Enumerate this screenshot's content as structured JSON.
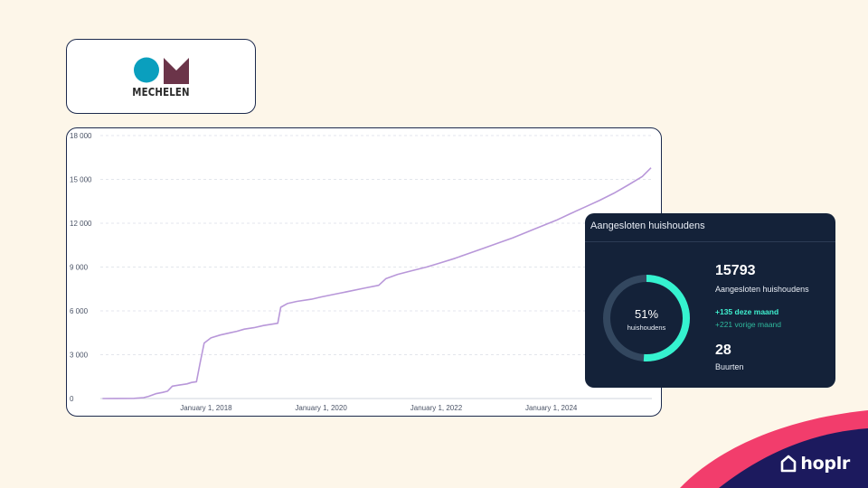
{
  "logo": {
    "text": "MECHELEN",
    "colors": {
      "circle": "#0a9fbe",
      "m": "#6b3449"
    }
  },
  "chart_data": {
    "type": "line",
    "title": "",
    "xlabel": "",
    "ylabel": "",
    "ylim": [
      0,
      18000
    ],
    "y_ticks": [
      0,
      3000,
      6000,
      9000,
      12000,
      15000,
      18000
    ],
    "y_tick_labels": [
      "0",
      "3 000",
      "6 000",
      "9 000",
      "12 000",
      "15 000",
      "18 000"
    ],
    "xlim": [
      "2016-03-01",
      "2025-10-01"
    ],
    "x_ticks": [
      "2018-01-01",
      "2020-01-01",
      "2022-01-01",
      "2024-01-01"
    ],
    "x_tick_labels": [
      "January 1, 2018",
      "January 1, 2020",
      "January 1, 2022",
      "January 1, 2024"
    ],
    "grid": true,
    "series": [
      {
        "color": "#b897d9",
        "points": [
          [
            "2016-03-15",
            0
          ],
          [
            "2016-10-01",
            10
          ],
          [
            "2016-12-01",
            60
          ],
          [
            "2017-01-01",
            150
          ],
          [
            "2017-02-15",
            330
          ],
          [
            "2017-04-01",
            420
          ],
          [
            "2017-05-01",
            500
          ],
          [
            "2017-06-01",
            850
          ],
          [
            "2017-07-15",
            920
          ],
          [
            "2017-09-01",
            1000
          ],
          [
            "2017-10-01",
            1100
          ],
          [
            "2017-11-01",
            1150
          ],
          [
            "2017-11-25",
            2500
          ],
          [
            "2017-12-20",
            3800
          ],
          [
            "2018-02-01",
            4150
          ],
          [
            "2018-04-01",
            4350
          ],
          [
            "2018-06-01",
            4500
          ],
          [
            "2018-07-15",
            4600
          ],
          [
            "2018-09-01",
            4750
          ],
          [
            "2018-11-01",
            4850
          ],
          [
            "2019-01-01",
            5000
          ],
          [
            "2019-03-01",
            5100
          ],
          [
            "2019-04-01",
            5150
          ],
          [
            "2019-04-20",
            6250
          ],
          [
            "2019-06-01",
            6500
          ],
          [
            "2019-08-01",
            6650
          ],
          [
            "2019-11-01",
            6800
          ],
          [
            "2020-01-01",
            6950
          ],
          [
            "2020-04-01",
            7150
          ],
          [
            "2020-07-01",
            7350
          ],
          [
            "2020-10-01",
            7550
          ],
          [
            "2021-01-01",
            7750
          ],
          [
            "2021-02-15",
            8200
          ],
          [
            "2021-05-01",
            8500
          ],
          [
            "2021-08-01",
            8750
          ],
          [
            "2021-11-01",
            9000
          ],
          [
            "2022-02-01",
            9300
          ],
          [
            "2022-05-01",
            9600
          ],
          [
            "2022-08-01",
            9950
          ],
          [
            "2022-11-01",
            10300
          ],
          [
            "2023-02-01",
            10650
          ],
          [
            "2023-05-01",
            11000
          ],
          [
            "2023-08-01",
            11400
          ],
          [
            "2023-11-01",
            11800
          ],
          [
            "2024-02-01",
            12200
          ],
          [
            "2024-05-01",
            12650
          ],
          [
            "2024-08-01",
            13100
          ],
          [
            "2024-11-01",
            13550
          ],
          [
            "2025-02-01",
            14050
          ],
          [
            "2025-05-01",
            14600
          ],
          [
            "2025-08-01",
            15200
          ],
          [
            "2025-09-25",
            15793
          ]
        ]
      }
    ]
  },
  "widget": {
    "title": "Aangesloten huishoudens",
    "donut_percent": "51%",
    "donut_value": 0.51,
    "donut_label": "huishoudens",
    "total": "15793",
    "total_label": "Aangesloten huishoudens",
    "delta_this_month": "+135 deze maand",
    "delta_prev_month": "+221 vorige maand",
    "neighbourhoods": "28",
    "neighbourhoods_label": "Buurten",
    "colors": {
      "background": "#142239",
      "accent": "#35f2cf",
      "track": "#33475f"
    }
  },
  "brand": {
    "name": "hoplr",
    "icon": "house-icon",
    "colors": {
      "pink": "#f23d6c",
      "navy": "#1c1a5e"
    }
  }
}
